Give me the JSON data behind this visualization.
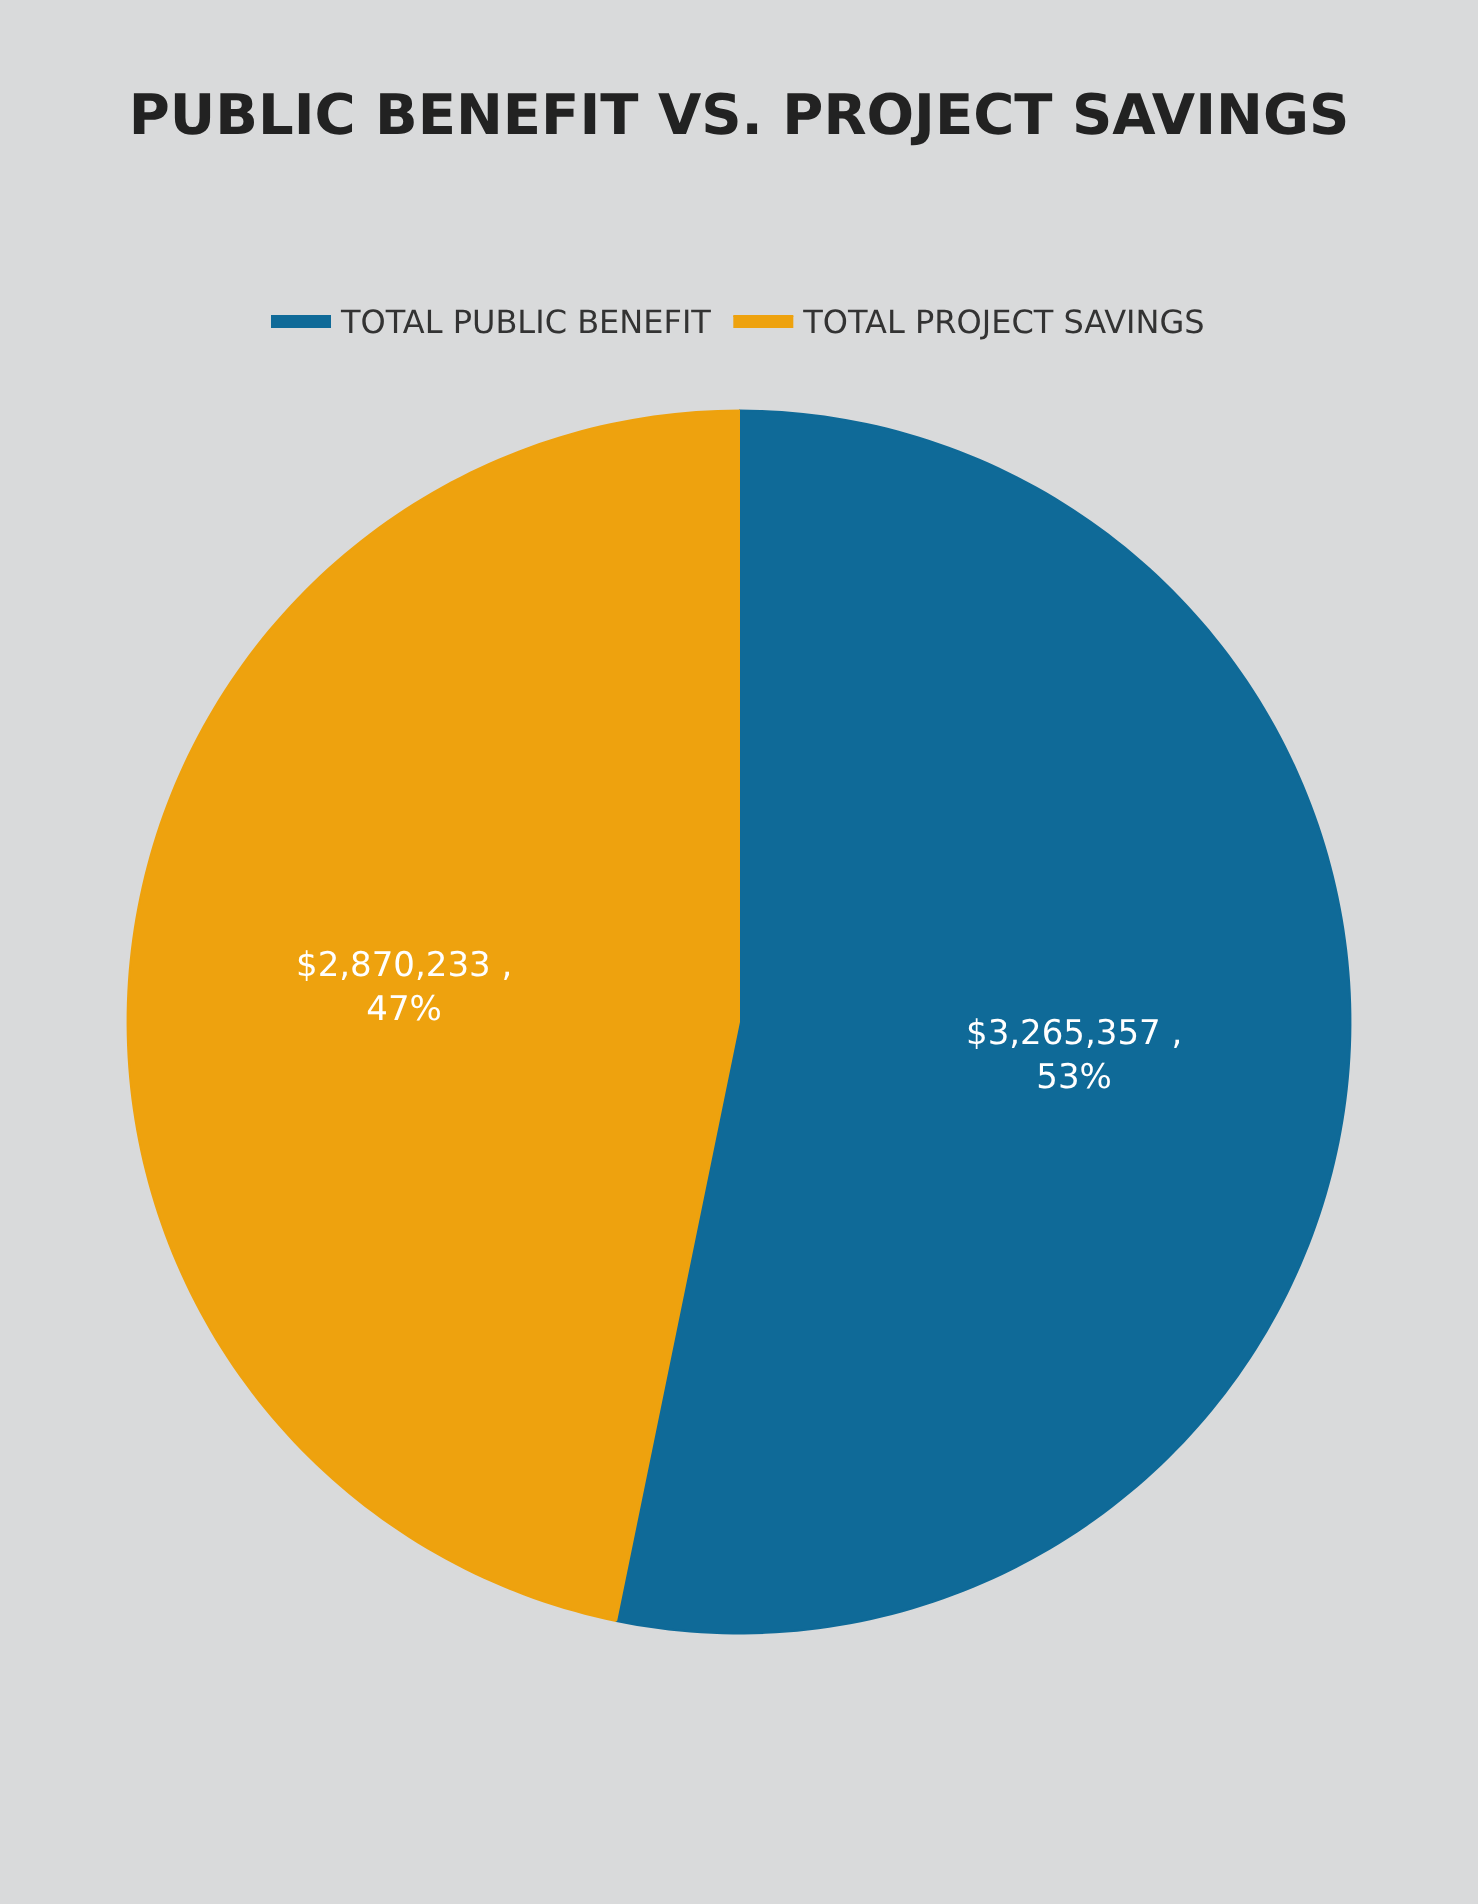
{
  "chart_data": {
    "type": "pie",
    "title": "PUBLIC BENEFIT VS. PROJECT SAVINGS",
    "categories": [
      "TOTAL PUBLIC BENEFIT",
      "TOTAL PROJECT SAVINGS"
    ],
    "values": [
      3265357,
      2870233
    ],
    "colors": [
      "#0f6a98",
      "#eea20e"
    ],
    "value_labels": [
      "$3,265,357 ,\n53%",
      "$2,870,233 ,\n47%"
    ],
    "legend": "top"
  }
}
